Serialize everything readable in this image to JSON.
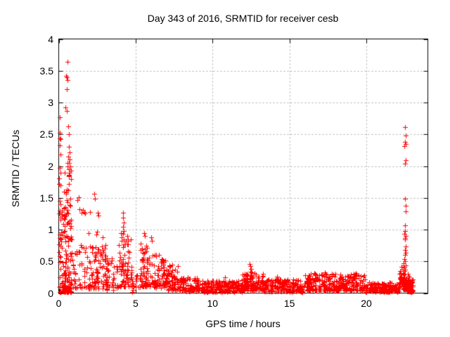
{
  "page": {
    "background": "#ffffff",
    "text_color": "#000000"
  },
  "chart_data": {
    "type": "scatter",
    "title": "Day 343 of 2016, SRMTID for receiver cesb",
    "xlabel": "GPS time / hours",
    "ylabel": "SRMTID / TECUs",
    "series_name": "SRMTID",
    "xlim": [
      0,
      24
    ],
    "ylim": [
      0,
      4
    ],
    "xticks": {
      "values": [
        0,
        5,
        10,
        15,
        20
      ],
      "labels": [
        "0",
        "5",
        "10",
        "15",
        "20"
      ]
    },
    "yticks": {
      "values": [
        0,
        0.5,
        1,
        1.5,
        2,
        2.5,
        3,
        3.5,
        4
      ],
      "labels": [
        "0",
        "0.5",
        "1",
        "1.5",
        "2",
        "2.5",
        "3",
        "3.5",
        "4"
      ]
    },
    "grid": {
      "show": true,
      "color": "#aaaaaa",
      "dash": [
        2,
        3
      ]
    },
    "border_color": "#000000",
    "marker": {
      "type": "plus",
      "size": 7,
      "color": "#ff0000",
      "line_width": 1
    },
    "seed": 1337,
    "cluster_note": "dense scatter approximated by clusters: x range, point count n, y range, skew exponent (higher = more points near y min), columns = vertical streak count (0 = uniform in x)",
    "clusters": [
      {
        "x": [
          0.05,
          0.85
        ],
        "n": 140,
        "y": [
          0.02,
          2.05
        ],
        "skew": 2.4,
        "columns": 7
      },
      {
        "x": [
          0.02,
          0.12
        ],
        "n": 14,
        "y": [
          0.15,
          2.5
        ],
        "skew": 1.0,
        "columns": 1
      },
      {
        "x": [
          0.3,
          0.8
        ],
        "n": 22,
        "y": [
          0.8,
          2.1
        ],
        "skew": 1.2,
        "columns": 4
      },
      {
        "x": [
          0.9,
          1.8
        ],
        "n": 40,
        "y": [
          0.08,
          0.8
        ],
        "skew": 1.6,
        "columns": 5
      },
      {
        "x": [
          1.8,
          3.1
        ],
        "n": 95,
        "y": [
          0.07,
          0.8
        ],
        "skew": 1.7,
        "columns": 8
      },
      {
        "x": [
          3.1,
          3.9
        ],
        "n": 40,
        "y": [
          0.05,
          0.55
        ],
        "skew": 1.5,
        "columns": 5
      },
      {
        "x": [
          3.9,
          4.75
        ],
        "n": 75,
        "y": [
          0.1,
          0.85
        ],
        "skew": 1.5,
        "columns": 5
      },
      {
        "x": [
          4.75,
          5.3
        ],
        "n": 18,
        "y": [
          0.02,
          0.3
        ],
        "skew": 1.4,
        "columns": 3
      },
      {
        "x": [
          5.3,
          6.2
        ],
        "n": 75,
        "y": [
          0.1,
          0.85
        ],
        "skew": 1.6,
        "columns": 5
      },
      {
        "x": [
          6.2,
          7.1
        ],
        "n": 70,
        "y": [
          0.08,
          0.62
        ],
        "skew": 1.5,
        "columns": 5
      },
      {
        "x": [
          7.1,
          7.8
        ],
        "n": 55,
        "y": [
          0.05,
          0.45
        ],
        "skew": 1.6,
        "columns": 4
      },
      {
        "x": [
          7.8,
          9.2
        ],
        "n": 95,
        "y": [
          0.03,
          0.25
        ],
        "skew": 1.4,
        "columns": 0
      },
      {
        "x": [
          9.2,
          11.9
        ],
        "n": 185,
        "y": [
          0.02,
          0.2
        ],
        "skew": 1.25,
        "columns": 0
      },
      {
        "x": [
          11.9,
          13.3
        ],
        "n": 115,
        "y": [
          0.04,
          0.32
        ],
        "skew": 1.5,
        "columns": 0
      },
      {
        "x": [
          13.3,
          15.9
        ],
        "n": 170,
        "y": [
          0.02,
          0.22
        ],
        "skew": 1.3,
        "columns": 0
      },
      {
        "x": [
          15.9,
          18.2
        ],
        "n": 165,
        "y": [
          0.04,
          0.3
        ],
        "skew": 1.35,
        "columns": 0
      },
      {
        "x": [
          18.2,
          19.9
        ],
        "n": 125,
        "y": [
          0.04,
          0.3
        ],
        "skew": 1.35,
        "columns": 0
      },
      {
        "x": [
          19.9,
          22.15
        ],
        "n": 150,
        "y": [
          0.02,
          0.17
        ],
        "skew": 1.25,
        "columns": 0
      },
      {
        "x": [
          22.15,
          22.45
        ],
        "n": 22,
        "y": [
          0.05,
          0.45
        ],
        "skew": 1.3,
        "columns": 2
      },
      {
        "x": [
          22.42,
          22.62
        ],
        "n": 22,
        "y": [
          0.05,
          0.35
        ],
        "skew": 1.2,
        "columns": 1
      },
      {
        "x": [
          22.6,
          23.05
        ],
        "n": 70,
        "y": [
          0.02,
          0.22
        ],
        "skew": 1.3,
        "columns": 2
      }
    ],
    "points": [
      [
        0.59,
        3.64
      ],
      [
        0.5,
        3.42
      ],
      [
        0.54,
        3.4
      ],
      [
        0.56,
        3.35
      ],
      [
        0.53,
        3.21
      ],
      [
        0.45,
        2.92
      ],
      [
        0.52,
        2.87
      ],
      [
        0.05,
        2.77
      ],
      [
        0.62,
        2.62
      ],
      [
        0.05,
        2.52
      ],
      [
        0.67,
        2.5
      ],
      [
        0.1,
        2.42
      ],
      [
        0.07,
        2.33
      ],
      [
        0.64,
        2.3
      ],
      [
        0.72,
        2.22
      ],
      [
        0.6,
        2.15
      ],
      [
        0.7,
        2.1
      ],
      [
        0.65,
        2.05
      ],
      [
        0.75,
        2.0
      ],
      [
        0.06,
        1.97
      ],
      [
        0.68,
        1.95
      ],
      [
        0.73,
        1.9
      ],
      [
        0.66,
        1.85
      ],
      [
        0.78,
        1.8
      ],
      [
        0.08,
        1.45
      ],
      [
        0.06,
        1.3
      ],
      [
        0.04,
        1.25
      ],
      [
        1.22,
        1.46
      ],
      [
        1.3,
        1.51
      ],
      [
        1.36,
        1.32
      ],
      [
        1.5,
        1.26
      ],
      [
        1.56,
        1.31
      ],
      [
        1.68,
        1.28
      ],
      [
        1.73,
        1.25
      ],
      [
        1.95,
        0.95
      ],
      [
        2.02,
        1.28
      ],
      [
        2.3,
        1.56
      ],
      [
        2.36,
        1.49
      ],
      [
        2.45,
        0.92
      ],
      [
        2.5,
        0.97
      ],
      [
        2.55,
        1.27
      ],
      [
        2.6,
        1.22
      ],
      [
        2.85,
        0.88
      ],
      [
        4.05,
        0.94
      ],
      [
        4.07,
        0.88
      ],
      [
        4.1,
        0.82
      ],
      [
        4.18,
        1.26
      ],
      [
        4.2,
        1.19
      ],
      [
        4.22,
        1.11
      ],
      [
        4.19,
        1.04
      ],
      [
        4.23,
        0.98
      ],
      [
        4.2,
        0.93
      ],
      [
        4.45,
        0.9
      ],
      [
        4.5,
        0.85
      ],
      [
        5.55,
        0.95
      ],
      [
        5.6,
        0.9
      ],
      [
        6.0,
        0.88
      ],
      [
        6.05,
        0.82
      ],
      [
        9.0,
        0.24
      ],
      [
        10.8,
        0.25
      ],
      [
        12.42,
        0.46
      ],
      [
        12.46,
        0.42
      ],
      [
        12.5,
        0.38
      ],
      [
        12.44,
        0.34
      ],
      [
        12.56,
        0.33
      ],
      [
        12.75,
        0.31
      ],
      [
        12.8,
        0.29
      ],
      [
        14.2,
        0.26
      ],
      [
        16.6,
        0.31
      ],
      [
        17.3,
        0.33
      ],
      [
        17.35,
        0.3
      ],
      [
        18.0,
        0.3
      ],
      [
        19.3,
        0.32
      ],
      [
        19.35,
        0.29
      ],
      [
        22.52,
        2.61
      ],
      [
        22.55,
        2.48
      ],
      [
        22.5,
        2.38
      ],
      [
        22.56,
        2.35
      ],
      [
        22.49,
        2.32
      ],
      [
        22.55,
        2.09
      ],
      [
        22.5,
        2.04
      ],
      [
        22.53,
        1.49
      ],
      [
        22.55,
        1.38
      ],
      [
        22.55,
        1.29
      ],
      [
        22.5,
        1.07
      ],
      [
        22.53,
        0.98
      ],
      [
        22.48,
        0.93
      ],
      [
        22.55,
        0.9
      ],
      [
        22.5,
        0.87
      ],
      [
        22.52,
        0.84
      ],
      [
        22.55,
        0.74
      ],
      [
        22.53,
        0.68
      ],
      [
        22.56,
        0.63
      ],
      [
        22.5,
        0.6
      ],
      [
        22.45,
        0.54
      ],
      [
        22.5,
        0.5
      ],
      [
        22.42,
        0.47
      ],
      [
        22.55,
        0.44
      ],
      [
        22.48,
        0.4
      ],
      [
        22.52,
        0.37
      ],
      [
        22.45,
        0.35
      ],
      [
        22.7,
        0.3
      ],
      [
        22.75,
        0.27
      ],
      [
        22.8,
        0.25
      ]
    ]
  }
}
